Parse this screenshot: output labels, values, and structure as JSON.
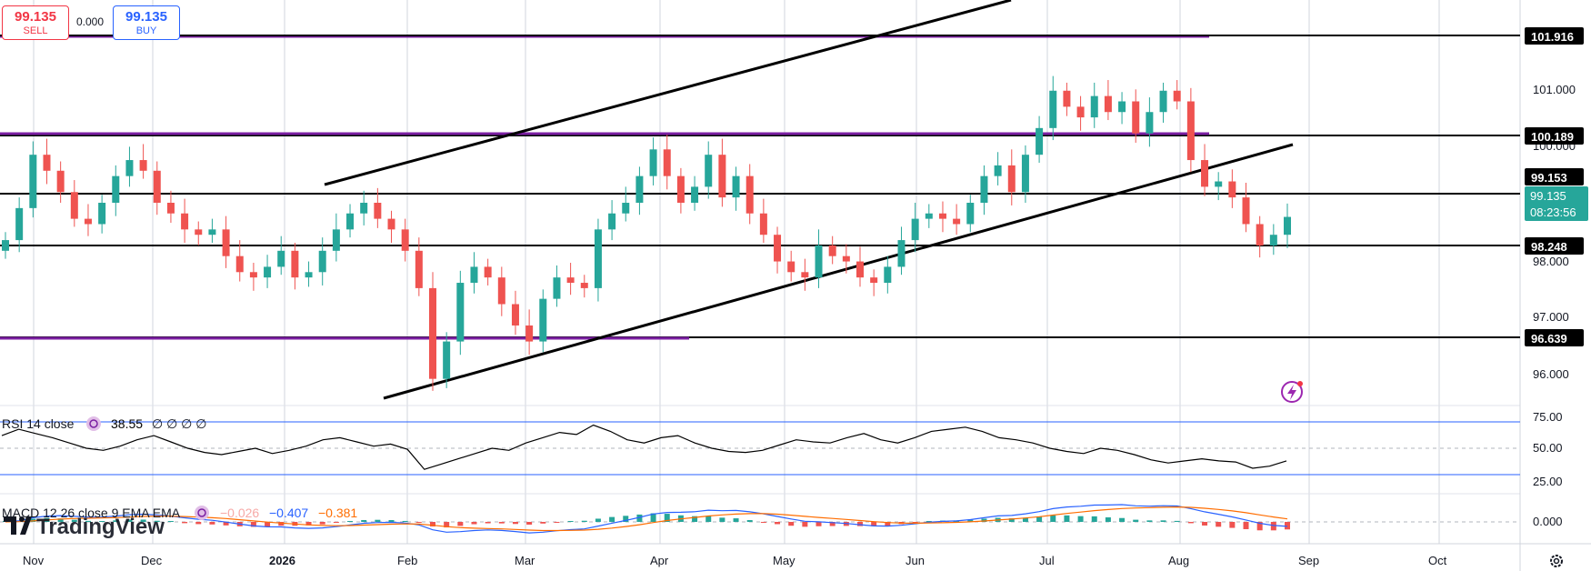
{
  "trade": {
    "sell_price": "99.135",
    "sell_label": "SELL",
    "spread": "0.000",
    "buy_price": "99.135",
    "buy_label": "BUY"
  },
  "price_labels": {
    "resistance_high": "101.916",
    "resistance_mid": "100.189",
    "pivot": "99.153",
    "current_price": "99.135",
    "countdown": "08:23:56",
    "support": "98.248",
    "support_low": "96.639"
  },
  "price_axis_ticks": [
    "101.000",
    "100.000",
    "98.000",
    "97.000",
    "96.000"
  ],
  "rsi": {
    "label": "RSI 14 close",
    "value": "38.55",
    "extras": "∅ ∅ ∅ ∅",
    "levels": [
      "75.00",
      "50.00",
      "25.00"
    ]
  },
  "macd": {
    "label": "MACD 12 26 close 9 EMA EMA",
    "hist": "−0.026",
    "macd": "−0.407",
    "signal": "−0.381",
    "zero_tick": "0.000"
  },
  "time_axis": [
    "Nov",
    "Dec",
    "2026",
    "Feb",
    "Mar",
    "Apr",
    "May",
    "Jun",
    "Jul",
    "Aug",
    "Sep",
    "Oct"
  ],
  "watermark": "TradingView",
  "colors": {
    "up": "#26a69a",
    "down": "#ef5350",
    "purple": "#7b1fa2",
    "axis_badge": "#000000",
    "current": "#26a69a"
  },
  "chart_data": {
    "type": "candlestick",
    "y_range": [
      95.6,
      103.2
    ],
    "horizontal_levels": [
      101.916,
      100.189,
      99.153,
      98.248,
      96.639
    ],
    "close_series": [
      98.7,
      99.3,
      100.3,
      100.0,
      99.6,
      99.1,
      99.0,
      99.4,
      99.9,
      100.2,
      100.0,
      99.4,
      99.2,
      98.9,
      98.8,
      98.9,
      98.4,
      98.1,
      98.0,
      98.2,
      98.5,
      98.0,
      98.1,
      98.5,
      98.9,
      99.2,
      99.4,
      99.1,
      98.9,
      98.5,
      97.8,
      96.1,
      96.8,
      97.9,
      98.2,
      98.0,
      97.5,
      97.1,
      96.8,
      97.6,
      98.0,
      97.9,
      97.8,
      98.9,
      99.2,
      99.4,
      99.9,
      100.4,
      99.9,
      99.4,
      99.7,
      100.3,
      99.5,
      99.9,
      99.2,
      98.8,
      98.3,
      98.1,
      98.0,
      98.6,
      98.4,
      98.3,
      98.0,
      97.9,
      98.2,
      98.7,
      99.1,
      99.2,
      99.1,
      99.0,
      99.4,
      99.9,
      100.1,
      99.6,
      100.3,
      100.8,
      101.5,
      101.2,
      101.0,
      101.4,
      101.1,
      101.3,
      100.7,
      101.1,
      101.5,
      101.3,
      100.2,
      99.7,
      99.8,
      99.5,
      99.0,
      98.6,
      98.8,
      99.135
    ],
    "rsi_series": [
      62,
      68,
      64,
      60,
      55,
      50,
      48,
      52,
      58,
      62,
      56,
      50,
      46,
      44,
      47,
      50,
      45,
      48,
      52,
      58,
      60,
      56,
      52,
      54,
      49,
      30,
      35,
      40,
      45,
      50,
      48,
      55,
      60,
      65,
      63,
      72,
      66,
      58,
      55,
      60,
      62,
      55,
      50,
      47,
      46,
      48,
      53,
      58,
      56,
      55,
      60,
      64,
      58,
      55,
      60,
      66,
      68,
      70,
      66,
      60,
      58,
      55,
      50,
      47,
      45,
      50,
      48,
      44,
      39,
      36,
      38,
      40,
      38,
      37,
      31,
      33,
      38
    ]
  }
}
